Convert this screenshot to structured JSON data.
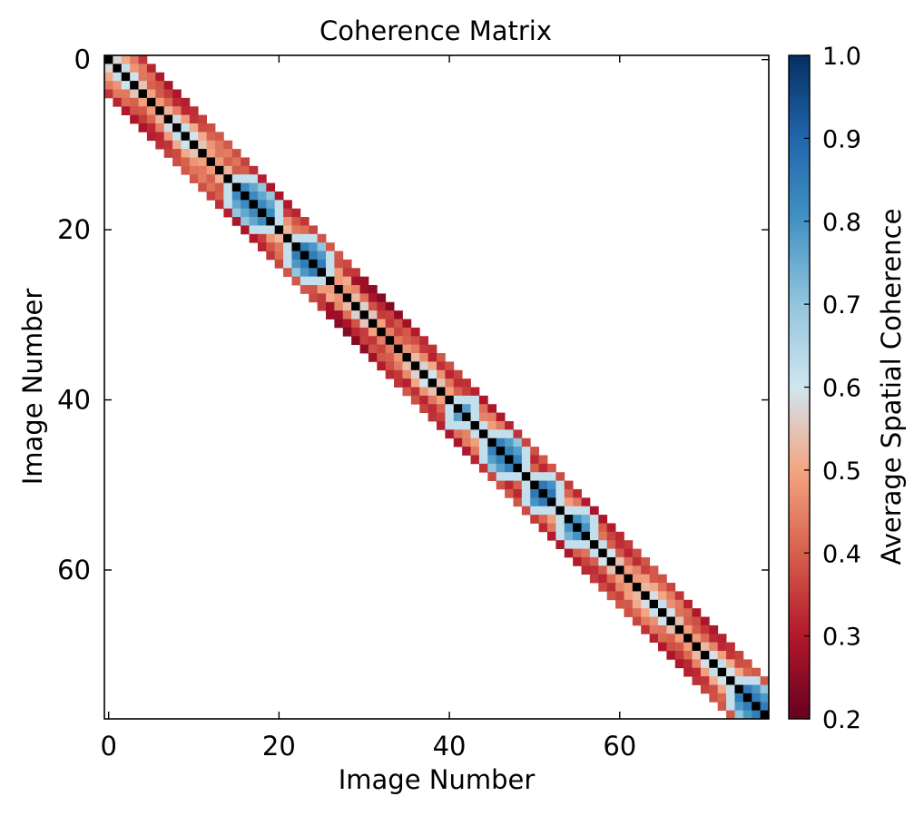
{
  "chart_data": {
    "type": "heatmap",
    "title": "Coherence Matrix",
    "xlabel": "Image Number",
    "ylabel": "Image Number",
    "n_images": 78,
    "x_ticks": [
      0,
      20,
      40,
      60
    ],
    "y_ticks": [
      0,
      20,
      40,
      60
    ],
    "colorbar": {
      "label": "Average Spatial Coherence",
      "min": 0.2,
      "max": 1.0,
      "ticks": [
        "0.2",
        "0.3",
        "0.4",
        "0.5",
        "0.6",
        "0.7",
        "0.8",
        "0.9",
        "1.0"
      ],
      "colormap": [
        "#67001f",
        "#b2182b",
        "#d6604d",
        "#f4a582",
        "#d1e5f0",
        "#92c5de",
        "#4393c3",
        "#2166ac",
        "#053061"
      ]
    },
    "diagonal_value": 1.0,
    "diagonal_color": "#000000",
    "band_half_width": 4,
    "background": "white (below threshold)",
    "high_coherence_clusters": [
      {
        "start": 15,
        "end": 19,
        "peak": 0.82
      },
      {
        "start": 22,
        "end": 25,
        "peak": 0.85
      },
      {
        "start": 41,
        "end": 42,
        "peak": 0.78
      },
      {
        "start": 45,
        "end": 48,
        "peak": 0.84
      },
      {
        "start": 50,
        "end": 52,
        "peak": 0.86
      },
      {
        "start": 54,
        "end": 56,
        "peak": 0.8
      },
      {
        "start": 74,
        "end": 77,
        "peak": 0.85
      }
    ]
  }
}
